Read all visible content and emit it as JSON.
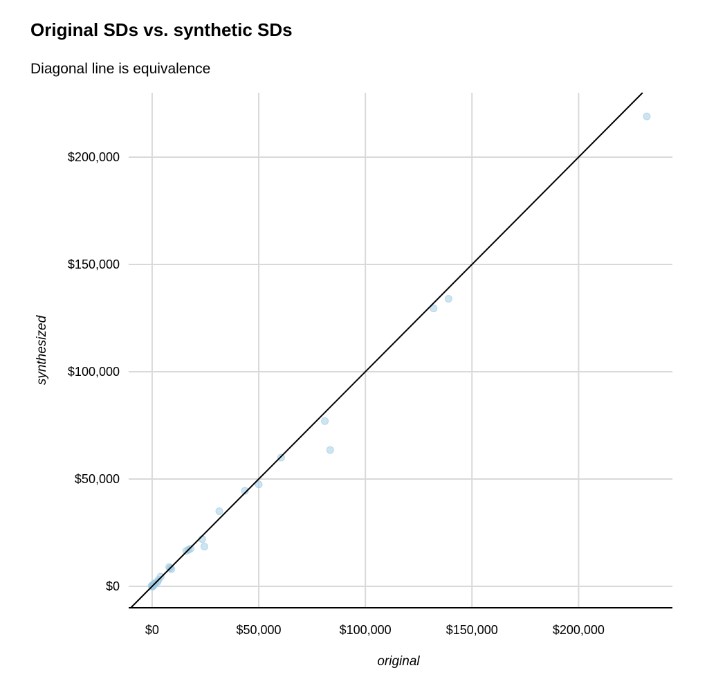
{
  "chart_data": {
    "type": "scatter",
    "title": "Original SDs vs. synthetic SDs",
    "subtitle": "Diagonal line is equivalence",
    "xlabel": "original",
    "ylabel": "synthesized",
    "xlim": [
      -11000,
      244000
    ],
    "ylim": [
      -10000,
      230000
    ],
    "x_ticks": [
      0,
      50000,
      100000,
      150000,
      200000
    ],
    "y_ticks": [
      0,
      50000,
      100000,
      150000,
      200000
    ],
    "x_tick_labels": [
      "$0",
      "$50,000",
      "$100,000",
      "$150,000",
      "$200,000"
    ],
    "y_tick_labels": [
      "$0",
      "$50,000",
      "$100,000",
      "$150,000",
      "$200,000"
    ],
    "grid": true,
    "reference_line": "y = x",
    "point_color": "#9ecae1",
    "line_color": "#000000",
    "grid_color": "#d9d9d9",
    "points": [
      {
        "x": 232000,
        "y": 219000
      },
      {
        "x": 139000,
        "y": 134000
      },
      {
        "x": 132000,
        "y": 129500
      },
      {
        "x": 81000,
        "y": 77000
      },
      {
        "x": 83500,
        "y": 63500
      },
      {
        "x": 60500,
        "y": 60000
      },
      {
        "x": 50000,
        "y": 47500
      },
      {
        "x": 43500,
        "y": 44500
      },
      {
        "x": 31500,
        "y": 35000
      },
      {
        "x": 23500,
        "y": 22000
      },
      {
        "x": 24500,
        "y": 18500
      },
      {
        "x": 18000,
        "y": 17500
      },
      {
        "x": 16000,
        "y": 16500
      },
      {
        "x": 17000,
        "y": 17000
      },
      {
        "x": 8500,
        "y": 8500
      },
      {
        "x": 8000,
        "y": 9000
      },
      {
        "x": 9000,
        "y": 8000
      },
      {
        "x": 4000,
        "y": 4500
      },
      {
        "x": 3000,
        "y": 3000
      },
      {
        "x": 2500,
        "y": 2000
      },
      {
        "x": 1500,
        "y": 1500
      },
      {
        "x": 1000,
        "y": 1200
      },
      {
        "x": 800,
        "y": 400
      },
      {
        "x": 500,
        "y": 800
      },
      {
        "x": 300,
        "y": 200
      },
      {
        "x": 100,
        "y": 100
      },
      {
        "x": 0,
        "y": 0
      },
      {
        "x": 200,
        "y": -200
      },
      {
        "x": -200,
        "y": 300
      }
    ]
  }
}
